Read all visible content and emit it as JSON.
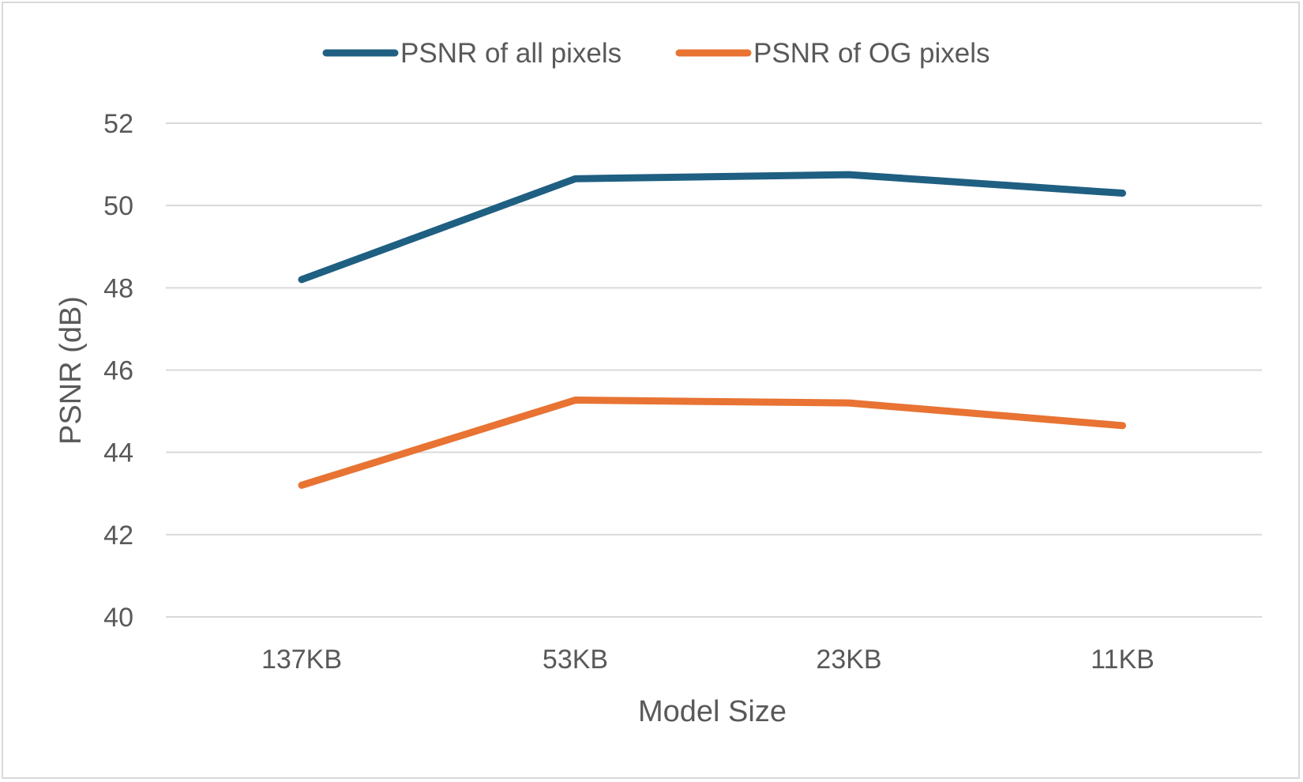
{
  "chart_data": {
    "type": "line",
    "title": "",
    "xlabel": "Model Size",
    "ylabel": "PSNR (dB)",
    "categories": [
      "137KB",
      "53KB",
      "23KB",
      "11KB"
    ],
    "ylim": [
      40,
      52
    ],
    "yticks": [
      40,
      42,
      44,
      46,
      48,
      50,
      52
    ],
    "grid": true,
    "legend_position": "top-center",
    "series": [
      {
        "name": "PSNR of all pixels",
        "color": "#1f5f82",
        "values": [
          48.2,
          50.65,
          50.75,
          50.3
        ]
      },
      {
        "name": "PSNR of OG pixels",
        "color": "#e87333",
        "values": [
          43.2,
          45.27,
          45.2,
          44.65
        ]
      }
    ]
  }
}
